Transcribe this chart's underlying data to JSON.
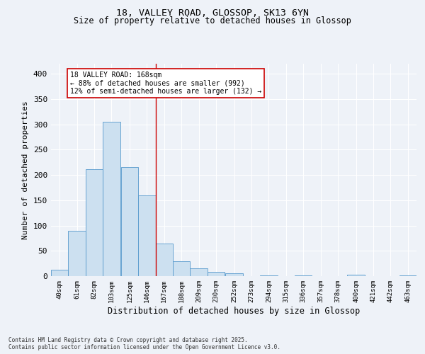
{
  "title1": "18, VALLEY ROAD, GLOSSOP, SK13 6YN",
  "title2": "Size of property relative to detached houses in Glossop",
  "xlabel": "Distribution of detached houses by size in Glossop",
  "ylabel": "Number of detached properties",
  "bin_edges": [
    40,
    61,
    82,
    103,
    125,
    146,
    167,
    188,
    209,
    230,
    252,
    273,
    294,
    315,
    336,
    357,
    378,
    400,
    421,
    442,
    463,
    484
  ],
  "bar_heights": [
    13,
    90,
    212,
    305,
    215,
    160,
    65,
    30,
    15,
    9,
    5,
    0,
    2,
    0,
    2,
    0,
    0,
    3,
    0,
    0,
    2
  ],
  "bar_color": "#cce0f0",
  "bar_edge_color": "#5599cc",
  "property_line_x": 167,
  "property_line_color": "#cc0000",
  "annotation_text": "18 VALLEY ROAD: 168sqm\n← 88% of detached houses are smaller (992)\n12% of semi-detached houses are larger (132) →",
  "annotation_box_color": "#ffffff",
  "annotation_box_edge_color": "#cc0000",
  "ylim": [
    0,
    420
  ],
  "yticks": [
    0,
    50,
    100,
    150,
    200,
    250,
    300,
    350,
    400
  ],
  "background_color": "#eef2f8",
  "grid_color": "#ffffff",
  "footer_text": "Contains HM Land Registry data © Crown copyright and database right 2025.\nContains public sector information licensed under the Open Government Licence v3.0.",
  "tick_labels": [
    "40sqm",
    "61sqm",
    "82sqm",
    "103sqm",
    "125sqm",
    "146sqm",
    "167sqm",
    "188sqm",
    "209sqm",
    "230sqm",
    "252sqm",
    "273sqm",
    "294sqm",
    "315sqm",
    "336sqm",
    "357sqm",
    "378sqm",
    "400sqm",
    "421sqm",
    "442sqm",
    "463sqm"
  ]
}
